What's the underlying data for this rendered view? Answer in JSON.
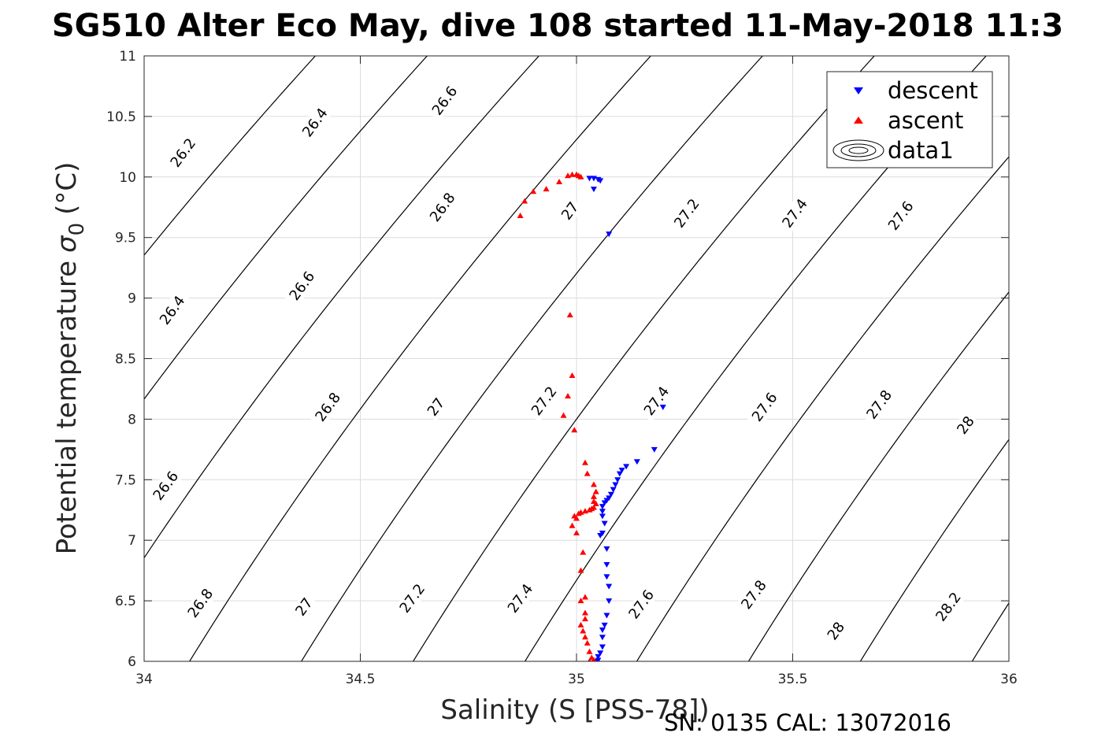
{
  "chart_data": {
    "type": "scatter",
    "title": "SG510 Alter Eco May, dive 108 started 11-May-2018 11:3",
    "xlabel": "Salinity (S [PSS-78])",
    "ylabel": "Potential temperature",
    "ylabel_symbol": "σ",
    "ylabel_subscript": "0",
    "ylabel_unit": "(°C)",
    "xlim": [
      34,
      36
    ],
    "ylim": [
      6,
      11
    ],
    "xticks": [
      34,
      34.5,
      35,
      35.5,
      36
    ],
    "xtick_labels": [
      "34",
      "34.5",
      "35",
      "35.5",
      "36"
    ],
    "yticks": [
      6,
      6.5,
      7,
      7.5,
      8,
      8.5,
      9,
      9.5,
      10,
      10.5,
      11
    ],
    "ytick_labels": [
      "6",
      "6.5",
      "7",
      "7.5",
      "8",
      "8.5",
      "9",
      "9.5",
      "10",
      "10.5",
      "11"
    ],
    "grid": true,
    "legend_position": "top-right",
    "footer": "SN: 0135  CAL: 13072016",
    "series": [
      {
        "name": "descent",
        "color": "#0000ff",
        "marker": "triangle-down",
        "points": [
          [
            35.03,
            9.99
          ],
          [
            35.04,
            9.99
          ],
          [
            35.05,
            9.98
          ],
          [
            35.055,
            9.97
          ],
          [
            35.04,
            9.9
          ],
          [
            35.075,
            9.53
          ],
          [
            35.2,
            8.1
          ],
          [
            35.18,
            7.75
          ],
          [
            35.14,
            7.65
          ],
          [
            35.115,
            7.61
          ],
          [
            35.105,
            7.58
          ],
          [
            35.1,
            7.55
          ],
          [
            35.095,
            7.5
          ],
          [
            35.09,
            7.46
          ],
          [
            35.085,
            7.42
          ],
          [
            35.08,
            7.38
          ],
          [
            35.075,
            7.35
          ],
          [
            35.07,
            7.33
          ],
          [
            35.065,
            7.31
          ],
          [
            35.06,
            7.28
          ],
          [
            35.06,
            7.24
          ],
          [
            35.06,
            7.2
          ],
          [
            35.065,
            7.14
          ],
          [
            35.06,
            7.06
          ],
          [
            35.055,
            7.04
          ],
          [
            35.07,
            6.93
          ],
          [
            35.07,
            6.8
          ],
          [
            35.07,
            6.7
          ],
          [
            35.075,
            6.62
          ],
          [
            35.075,
            6.5
          ],
          [
            35.07,
            6.38
          ],
          [
            35.065,
            6.3
          ],
          [
            35.06,
            6.26
          ],
          [
            35.06,
            6.2
          ],
          [
            35.06,
            6.12
          ],
          [
            35.055,
            6.07
          ],
          [
            35.05,
            6.04
          ],
          [
            35.05,
            6.01
          ],
          [
            35.045,
            6.0
          ]
        ]
      },
      {
        "name": "ascent",
        "color": "#ff0000",
        "marker": "triangle-up",
        "points": [
          [
            34.87,
            9.68
          ],
          [
            34.88,
            9.8
          ],
          [
            34.9,
            9.88
          ],
          [
            34.93,
            9.9
          ],
          [
            34.96,
            9.96
          ],
          [
            34.98,
            10.01
          ],
          [
            34.99,
            10.02
          ],
          [
            35.0,
            10.02
          ],
          [
            35.005,
            10.01
          ],
          [
            35.01,
            10.0
          ],
          [
            34.985,
            8.86
          ],
          [
            34.99,
            8.36
          ],
          [
            34.98,
            8.19
          ],
          [
            34.97,
            8.03
          ],
          [
            34.995,
            7.91
          ],
          [
            35.02,
            7.64
          ],
          [
            35.025,
            7.55
          ],
          [
            35.04,
            7.46
          ],
          [
            35.045,
            7.4
          ],
          [
            35.04,
            7.36
          ],
          [
            35.04,
            7.32
          ],
          [
            35.045,
            7.3
          ],
          [
            35.04,
            7.27
          ],
          [
            35.035,
            7.26
          ],
          [
            35.03,
            7.25
          ],
          [
            35.02,
            7.24
          ],
          [
            35.01,
            7.23
          ],
          [
            35.005,
            7.22
          ],
          [
            34.995,
            7.2
          ],
          [
            35.0,
            7.18
          ],
          [
            34.99,
            7.12
          ],
          [
            35.0,
            7.06
          ],
          [
            35.015,
            6.9
          ],
          [
            35.01,
            6.75
          ],
          [
            35.02,
            6.53
          ],
          [
            35.01,
            6.5
          ],
          [
            35.02,
            6.4
          ],
          [
            35.02,
            6.35
          ],
          [
            35.01,
            6.3
          ],
          [
            35.015,
            6.25
          ],
          [
            35.02,
            6.2
          ],
          [
            35.025,
            6.15
          ],
          [
            35.03,
            6.08
          ],
          [
            35.035,
            6.03
          ],
          [
            35.03,
            6.0
          ],
          [
            35.04,
            6.01
          ]
        ]
      },
      {
        "name": "data1",
        "color": "#000000",
        "marker": "contour",
        "contour_levels": [
          26.2,
          26.4,
          26.6,
          26.8,
          27,
          27.2,
          27.4,
          27.6,
          27.8,
          28,
          28.2
        ]
      }
    ],
    "contour_labels": [
      {
        "text": "26.2",
        "s": 34.09,
        "t": 10.2
      },
      {
        "text": "26.4",
        "s": 34.395,
        "t": 10.45
      },
      {
        "text": "26.6",
        "s": 34.695,
        "t": 10.63
      },
      {
        "text": "26.4",
        "s": 34.065,
        "t": 8.9
      },
      {
        "text": "26.6",
        "s": 34.365,
        "t": 9.1
      },
      {
        "text": "26.8",
        "s": 34.69,
        "t": 9.75
      },
      {
        "text": "27",
        "s": 34.985,
        "t": 9.72
      },
      {
        "text": "27.2",
        "s": 35.255,
        "t": 9.7
      },
      {
        "text": "27.4",
        "s": 35.505,
        "t": 9.7
      },
      {
        "text": "27.6",
        "s": 35.75,
        "t": 9.68
      },
      {
        "text": "26.6",
        "s": 34.05,
        "t": 7.45
      },
      {
        "text": "26.8",
        "s": 34.425,
        "t": 8.1
      },
      {
        "text": "27",
        "s": 34.675,
        "t": 8.1
      },
      {
        "text": "27.2",
        "s": 34.925,
        "t": 8.15
      },
      {
        "text": "27.4",
        "s": 35.185,
        "t": 8.15
      },
      {
        "text": "27.6",
        "s": 35.435,
        "t": 8.1
      },
      {
        "text": "27.8",
        "s": 35.7,
        "t": 8.12
      },
      {
        "text": "28",
        "s": 35.9,
        "t": 7.95
      },
      {
        "text": "26.8",
        "s": 34.13,
        "t": 6.48
      },
      {
        "text": "27",
        "s": 34.37,
        "t": 6.45
      },
      {
        "text": "27.2",
        "s": 34.62,
        "t": 6.52
      },
      {
        "text": "27.4",
        "s": 34.87,
        "t": 6.52
      },
      {
        "text": "27.6",
        "s": 35.15,
        "t": 6.47
      },
      {
        "text": "27.8",
        "s": 35.41,
        "t": 6.55
      },
      {
        "text": "28",
        "s": 35.6,
        "t": 6.25
      },
      {
        "text": "28.2",
        "s": 35.86,
        "t": 6.45
      }
    ]
  }
}
